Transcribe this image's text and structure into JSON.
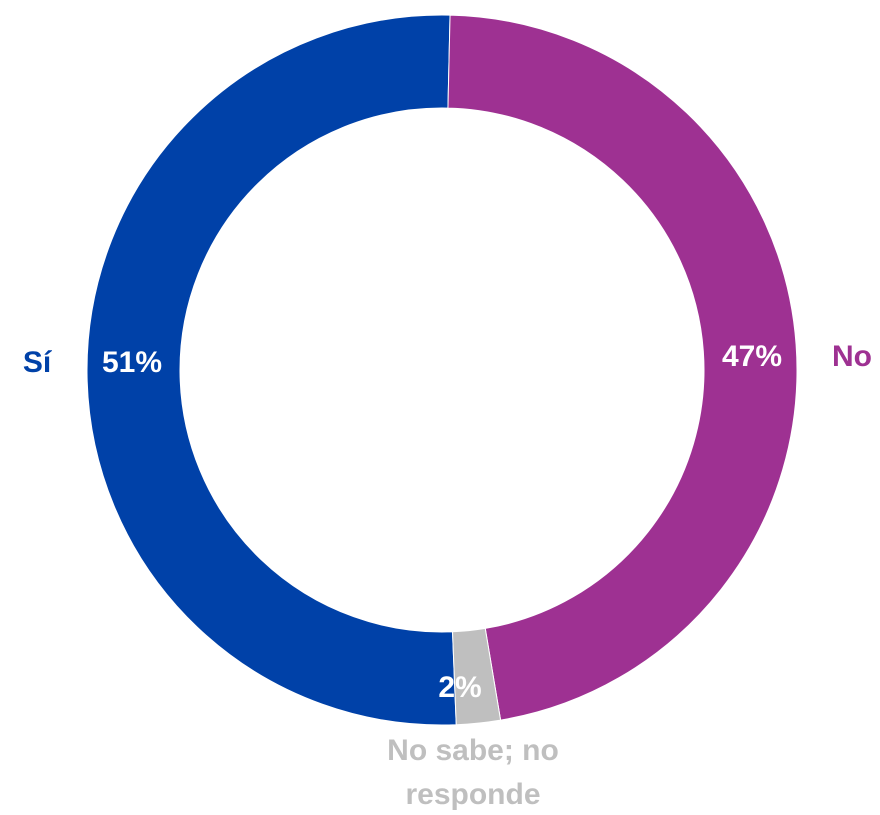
{
  "chart_data": {
    "type": "pie",
    "donut": true,
    "title": "",
    "categories": [
      "Sí",
      "No",
      "No sabe; no responde"
    ],
    "values": [
      51,
      47,
      2
    ],
    "value_labels": [
      "51%",
      "47%",
      "2%"
    ],
    "category_labels": [
      [
        "Sí"
      ],
      [
        "No"
      ],
      [
        "No sabe; no",
        "responde"
      ]
    ],
    "colors": [
      "#0041a8",
      "#9e3192",
      "#bfbfbf"
    ],
    "label_colors": [
      "#0041a8",
      "#9e3192",
      "#bfbfbf"
    ],
    "legend": "none"
  }
}
